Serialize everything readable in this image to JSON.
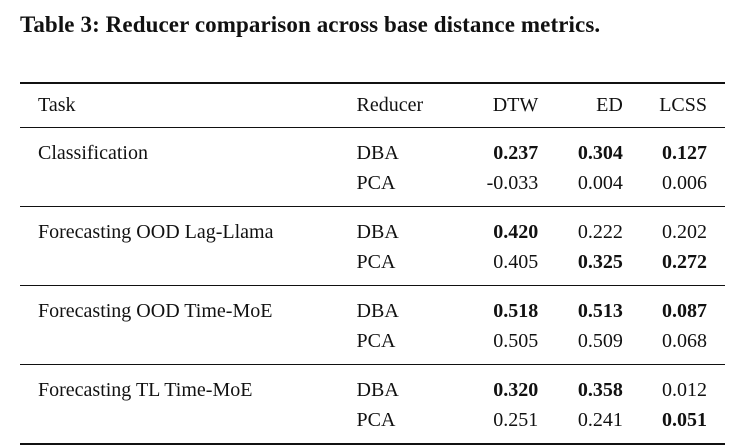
{
  "caption": "Table 3: Reducer comparison across base distance metrics.",
  "headers": {
    "task": "Task",
    "reducer": "Reducer",
    "dtw": "DTW",
    "ed": "ED",
    "lcss": "LCSS"
  },
  "groups": [
    {
      "task": "Classification",
      "rows": [
        {
          "reducer": "DBA",
          "dtw": "0.237",
          "ed": "0.304",
          "lcss": "0.127"
        },
        {
          "reducer": "PCA",
          "dtw": "-0.033",
          "ed": "0.004",
          "lcss": "0.006"
        }
      ]
    },
    {
      "task": "Forecasting OOD Lag-Llama",
      "rows": [
        {
          "reducer": "DBA",
          "dtw": "0.420",
          "ed": "0.222",
          "lcss": "0.202"
        },
        {
          "reducer": "PCA",
          "dtw": "0.405",
          "ed": "0.325",
          "lcss": "0.272"
        }
      ]
    },
    {
      "task": "Forecasting OOD Time-MoE",
      "rows": [
        {
          "reducer": "DBA",
          "dtw": "0.518",
          "ed": "0.513",
          "lcss": "0.087"
        },
        {
          "reducer": "PCA",
          "dtw": "0.505",
          "ed": "0.509",
          "lcss": "0.068"
        }
      ]
    },
    {
      "task": "Forecasting TL Time-MoE",
      "rows": [
        {
          "reducer": "DBA",
          "dtw": "0.320",
          "ed": "0.358",
          "lcss": "0.012"
        },
        {
          "reducer": "PCA",
          "dtw": "0.251",
          "ed": "0.241",
          "lcss": "0.051"
        }
      ]
    }
  ]
}
